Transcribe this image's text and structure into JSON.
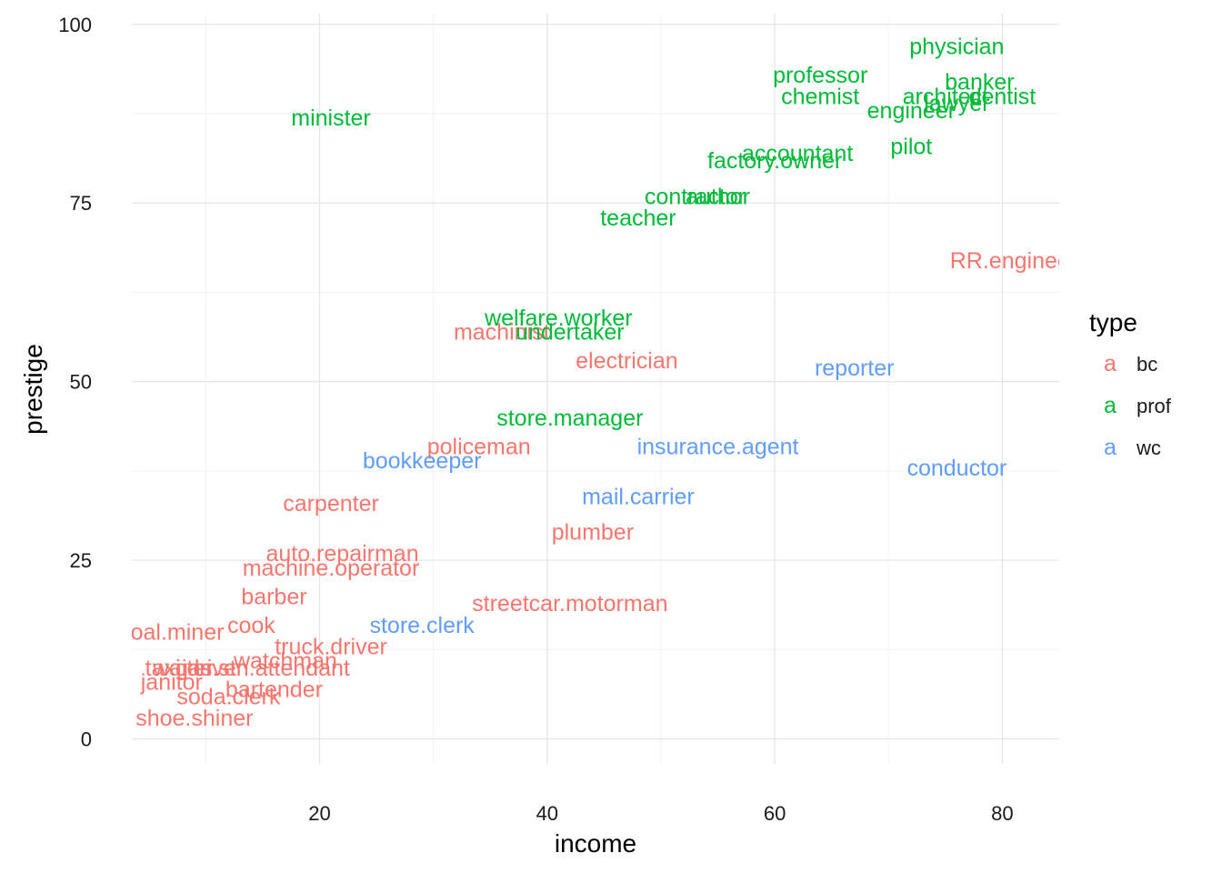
{
  "chart_data": {
    "type": "scatter",
    "title": "",
    "xlabel": "income",
    "ylabel": "prestige",
    "xlim": [
      3.5,
      85
    ],
    "ylim": [
      -3.5,
      101.5
    ],
    "x_ticks": [
      20,
      40,
      60,
      80
    ],
    "y_ticks": [
      0,
      25,
      50,
      75,
      100
    ],
    "grid": true,
    "legend": {
      "title": "type",
      "position": "right",
      "key_glyph": "a",
      "entries": [
        {
          "name": "bc",
          "color": "#F8766D"
        },
        {
          "name": "prof",
          "color": "#00BA38"
        },
        {
          "name": "wc",
          "color": "#619CFF"
        }
      ]
    },
    "points": [
      {
        "label": "physician",
        "x": 76,
        "y": 97,
        "type": "prof"
      },
      {
        "label": "professor",
        "x": 64,
        "y": 93,
        "type": "prof"
      },
      {
        "label": "banker",
        "x": 78,
        "y": 92,
        "type": "prof"
      },
      {
        "label": "chemist",
        "x": 64,
        "y": 90,
        "type": "prof"
      },
      {
        "label": "architect",
        "x": 75,
        "y": 90,
        "type": "prof"
      },
      {
        "label": "dentist",
        "x": 80,
        "y": 90,
        "type": "prof"
      },
      {
        "label": "lawyer",
        "x": 76,
        "y": 89,
        "type": "prof"
      },
      {
        "label": "engineer",
        "x": 72,
        "y": 88,
        "type": "prof"
      },
      {
        "label": "minister",
        "x": 21,
        "y": 87,
        "type": "prof"
      },
      {
        "label": "pilot",
        "x": 72,
        "y": 83,
        "type": "prof"
      },
      {
        "label": "accountant",
        "x": 62,
        "y": 82,
        "type": "prof"
      },
      {
        "label": "factory.owner",
        "x": 60,
        "y": 81,
        "type": "prof"
      },
      {
        "label": "contractor",
        "x": 53,
        "y": 76,
        "type": "prof"
      },
      {
        "label": "author",
        "x": 55,
        "y": 76,
        "type": "prof"
      },
      {
        "label": "teacher",
        "x": 48,
        "y": 73,
        "type": "prof"
      },
      {
        "label": "RR.engineer",
        "x": 81,
        "y": 67,
        "type": "bc"
      },
      {
        "label": "welfare.worker",
        "x": 41,
        "y": 59,
        "type": "prof"
      },
      {
        "label": "machinist",
        "x": 36,
        "y": 57,
        "type": "bc"
      },
      {
        "label": "undertaker",
        "x": 42,
        "y": 57,
        "type": "prof"
      },
      {
        "label": "electrician",
        "x": 47,
        "y": 53,
        "type": "bc"
      },
      {
        "label": "reporter",
        "x": 67,
        "y": 52,
        "type": "wc"
      },
      {
        "label": "store.manager",
        "x": 42,
        "y": 45,
        "type": "prof"
      },
      {
        "label": "policeman",
        "x": 34,
        "y": 41,
        "type": "bc"
      },
      {
        "label": "insurance.agent",
        "x": 55,
        "y": 41,
        "type": "wc"
      },
      {
        "label": "bookkeeper",
        "x": 29,
        "y": 39,
        "type": "wc"
      },
      {
        "label": "conductor",
        "x": 76,
        "y": 38,
        "type": "wc"
      },
      {
        "label": "mail.carrier",
        "x": 48,
        "y": 34,
        "type": "wc"
      },
      {
        "label": "carpenter",
        "x": 21,
        "y": 33,
        "type": "bc"
      },
      {
        "label": "plumber",
        "x": 44,
        "y": 29,
        "type": "bc"
      },
      {
        "label": "auto.repairman",
        "x": 22,
        "y": 26,
        "type": "bc"
      },
      {
        "label": "machine.operator",
        "x": 21,
        "y": 24,
        "type": "bc"
      },
      {
        "label": "barber",
        "x": 16,
        "y": 20,
        "type": "bc"
      },
      {
        "label": "streetcar.motorman",
        "x": 42,
        "y": 19,
        "type": "bc"
      },
      {
        "label": "coal.miner",
        "x": 7,
        "y": 15,
        "type": "bc"
      },
      {
        "label": "cook",
        "x": 14,
        "y": 16,
        "type": "bc"
      },
      {
        "label": "store.clerk",
        "x": 29,
        "y": 16,
        "type": "wc"
      },
      {
        "label": "truck.driver",
        "x": 21,
        "y": 13,
        "type": "bc"
      },
      {
        "label": "watchman",
        "x": 17,
        "y": 11,
        "type": "bc"
      },
      {
        "label": "gas.stn.attendant",
        "x": 15,
        "y": 10,
        "type": "bc"
      },
      {
        "label": "taxi.driver",
        "x": 9,
        "y": 10,
        "type": "bc"
      },
      {
        "label": "waiter",
        "x": 8,
        "y": 10,
        "type": "bc"
      },
      {
        "label": "janitor",
        "x": 7,
        "y": 8,
        "type": "bc"
      },
      {
        "label": "bartender",
        "x": 16,
        "y": 7,
        "type": "bc"
      },
      {
        "label": "soda.clerk",
        "x": 12,
        "y": 6,
        "type": "bc"
      },
      {
        "label": "shoe.shiner",
        "x": 9,
        "y": 3,
        "type": "bc"
      }
    ]
  }
}
